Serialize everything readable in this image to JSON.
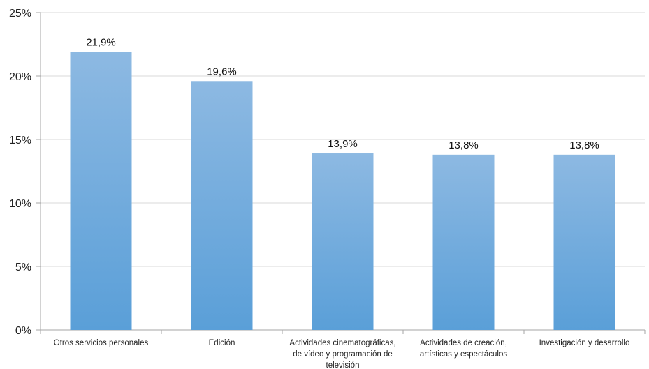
{
  "chart_data": {
    "type": "bar",
    "categories": [
      [
        "Otros servicios personales"
      ],
      [
        "Edición"
      ],
      [
        "Actividades cinematográficas,",
        "de vídeo y programación de",
        "televisión"
      ],
      [
        "Actividades de creación,",
        "artísticas y espectáculos"
      ],
      [
        "Investigación y desarrollo"
      ]
    ],
    "values": [
      21.9,
      19.6,
      13.9,
      13.8,
      13.8
    ],
    "data_labels": [
      "21,9%",
      "19,6%",
      "13,9%",
      "13,8%",
      "13,8%"
    ],
    "yticks": [
      {
        "value": 0,
        "label": "0%"
      },
      {
        "value": 5,
        "label": "5%"
      },
      {
        "value": 10,
        "label": "10%"
      },
      {
        "value": 15,
        "label": "15%"
      },
      {
        "value": 20,
        "label": "20%"
      },
      {
        "value": 25,
        "label": "25%"
      }
    ],
    "ylim": [
      0,
      25
    ],
    "grid": true,
    "legend": "none",
    "bar_color_top": "#8db9e2",
    "bar_color_bottom": "#5a9fd8",
    "grid_color": "#d9d9d9",
    "axis_color": "#a6a6a6"
  }
}
